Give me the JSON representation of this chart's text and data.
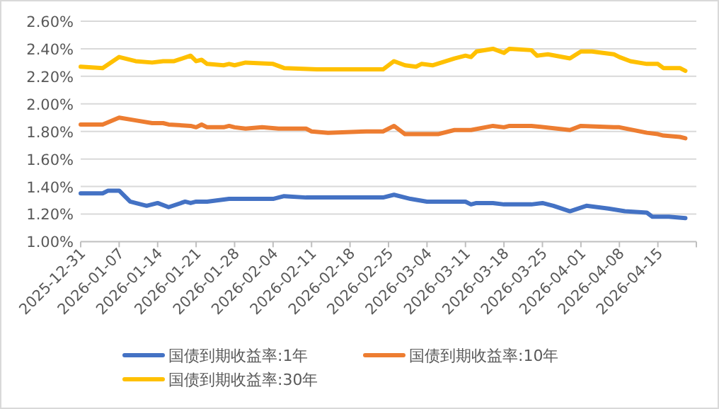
{
  "chart_data": {
    "type": "line",
    "xlim": [
      "2025-12-31",
      "2026-04-22"
    ],
    "xticks": [
      "2025-12-31",
      "2026-01-07",
      "2026-01-14",
      "2026-01-21",
      "2026-01-28",
      "2026-02-04",
      "2026-02-11",
      "2026-02-18",
      "2026-02-25",
      "2026-03-04",
      "2026-03-11",
      "2026-03-18",
      "2026-03-25",
      "2026-04-01",
      "2026-04-08",
      "2026-04-15",
      {
        "value": "2026-04-22",
        "label": null
      }
    ],
    "ylim": [
      1.0,
      2.6
    ],
    "yticks": [
      {
        "value": 1.0,
        "label": "1.00%"
      },
      {
        "value": 1.2,
        "label": "1.20%"
      },
      {
        "value": 1.4,
        "label": "1.40%"
      },
      {
        "value": 1.6,
        "label": "1.60%"
      },
      {
        "value": 1.8,
        "label": "1.80%"
      },
      {
        "value": 2.0,
        "label": "2.00%"
      },
      {
        "value": 2.2,
        "label": "2.20%"
      },
      {
        "value": 2.4,
        "label": "2.40%"
      },
      {
        "value": 2.6,
        "label": "2.60%"
      }
    ],
    "grid": "y",
    "legend": "bottom",
    "marker": "none",
    "line_style": "solid",
    "series": [
      {
        "name": "国债到期收益率:1年",
        "color": "#4472c4",
        "x": [
          "2025-12-31",
          "2026-01-04",
          "2026-01-05",
          "2026-01-07",
          "2026-01-09",
          "2026-01-12",
          "2026-01-14",
          "2026-01-16",
          "2026-01-19",
          "2026-01-20",
          "2026-01-21",
          "2026-01-23",
          "2026-01-27",
          "2026-01-30",
          "2026-02-04",
          "2026-02-06",
          "2026-02-10",
          "2026-02-14",
          "2026-02-21",
          "2026-02-24",
          "2026-02-26",
          "2026-03-01",
          "2026-03-04",
          "2026-03-11",
          "2026-03-12",
          "2026-03-13",
          "2026-03-16",
          "2026-03-18",
          "2026-03-23",
          "2026-03-25",
          "2026-03-27",
          "2026-03-30",
          "2026-04-02",
          "2026-04-06",
          "2026-04-09",
          "2026-04-13",
          "2026-04-14",
          "2026-04-17",
          "2026-04-20"
        ],
        "values": [
          1.35,
          1.35,
          1.37,
          1.37,
          1.29,
          1.26,
          1.28,
          1.25,
          1.29,
          1.28,
          1.29,
          1.29,
          1.31,
          1.31,
          1.31,
          1.33,
          1.32,
          1.32,
          1.32,
          1.32,
          1.34,
          1.31,
          1.29,
          1.29,
          1.27,
          1.28,
          1.28,
          1.27,
          1.27,
          1.28,
          1.26,
          1.22,
          1.26,
          1.24,
          1.22,
          1.21,
          1.18,
          1.18,
          1.17
        ]
      },
      {
        "name": "国债到期收益率:10年",
        "color": "#ed7d31",
        "x": [
          "2025-12-31",
          "2026-01-04",
          "2026-01-07",
          "2026-01-10",
          "2026-01-13",
          "2026-01-15",
          "2026-01-16",
          "2026-01-20",
          "2026-01-21",
          "2026-01-22",
          "2026-01-23",
          "2026-01-26",
          "2026-01-27",
          "2026-01-28",
          "2026-01-30",
          "2026-02-02",
          "2026-02-05",
          "2026-02-10",
          "2026-02-11",
          "2026-02-14",
          "2026-02-21",
          "2026-02-24",
          "2026-02-26",
          "2026-02-28",
          "2026-03-03",
          "2026-03-06",
          "2026-03-09",
          "2026-03-12",
          "2026-03-16",
          "2026-03-18",
          "2026-03-19",
          "2026-03-23",
          "2026-03-30",
          "2026-04-01",
          "2026-04-07",
          "2026-04-08",
          "2026-04-13",
          "2026-04-15",
          "2026-04-16",
          "2026-04-19",
          "2026-04-20"
        ],
        "values": [
          1.85,
          1.85,
          1.9,
          1.88,
          1.86,
          1.86,
          1.85,
          1.84,
          1.83,
          1.85,
          1.83,
          1.83,
          1.84,
          1.83,
          1.82,
          1.83,
          1.82,
          1.82,
          1.8,
          1.79,
          1.8,
          1.8,
          1.84,
          1.78,
          1.78,
          1.78,
          1.81,
          1.81,
          1.84,
          1.83,
          1.84,
          1.84,
          1.81,
          1.84,
          1.83,
          1.83,
          1.79,
          1.78,
          1.77,
          1.76,
          1.75
        ]
      },
      {
        "name": "国债到期收益率:30年",
        "color": "#ffc000",
        "x": [
          "2025-12-31",
          "2026-01-04",
          "2026-01-07",
          "2026-01-10",
          "2026-01-13",
          "2026-01-15",
          "2026-01-17",
          "2026-01-20",
          "2026-01-21",
          "2026-01-22",
          "2026-01-23",
          "2026-01-26",
          "2026-01-27",
          "2026-01-28",
          "2026-01-30",
          "2026-02-04",
          "2026-02-06",
          "2026-02-12",
          "2026-02-21",
          "2026-02-24",
          "2026-02-26",
          "2026-02-28",
          "2026-03-02",
          "2026-03-03",
          "2026-03-05",
          "2026-03-09",
          "2026-03-11",
          "2026-03-12",
          "2026-03-13",
          "2026-03-16",
          "2026-03-18",
          "2026-03-19",
          "2026-03-23",
          "2026-03-24",
          "2026-03-26",
          "2026-03-30",
          "2026-04-01",
          "2026-04-03",
          "2026-04-07",
          "2026-04-08",
          "2026-04-10",
          "2026-04-13",
          "2026-04-15",
          "2026-04-16",
          "2026-04-19",
          "2026-04-20"
        ],
        "values": [
          2.27,
          2.26,
          2.34,
          2.31,
          2.3,
          2.31,
          2.31,
          2.35,
          2.31,
          2.32,
          2.29,
          2.28,
          2.29,
          2.28,
          2.3,
          2.29,
          2.26,
          2.25,
          2.25,
          2.25,
          2.31,
          2.28,
          2.27,
          2.29,
          2.28,
          2.33,
          2.35,
          2.34,
          2.38,
          2.4,
          2.37,
          2.4,
          2.39,
          2.35,
          2.36,
          2.33,
          2.38,
          2.38,
          2.36,
          2.34,
          2.31,
          2.29,
          2.29,
          2.26,
          2.26,
          2.24
        ]
      }
    ]
  }
}
